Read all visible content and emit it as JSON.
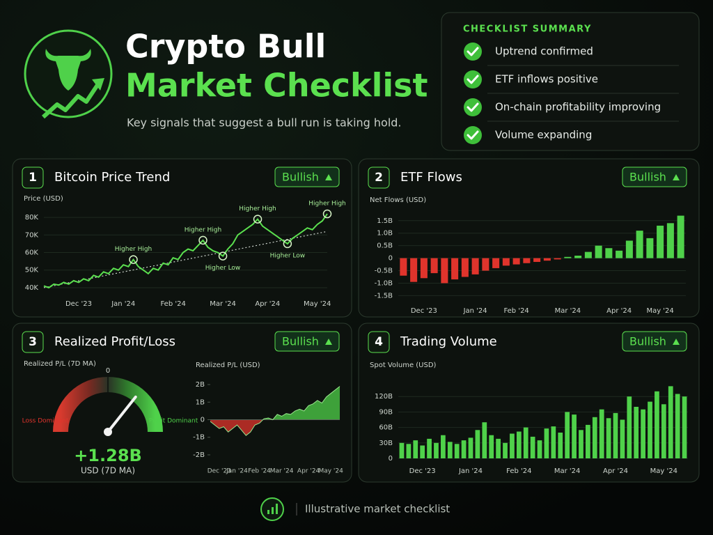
{
  "header": {
    "title_line1": "Crypto Bull",
    "title_line2": "Market Checklist",
    "subtitle": "Key signals that suggest a bull run is taking hold."
  },
  "checklist": {
    "title": "CHECKLIST SUMMARY",
    "items": [
      "Uptrend confirmed",
      "ETF inflows positive",
      "On-chain profitability improving",
      "Volume expanding"
    ]
  },
  "chart_data": [
    {
      "type": "line",
      "number": 1,
      "title": "Bitcoin Price Trend",
      "badge": "Bullish",
      "y_label": "Price (USD)",
      "color": "#5be04f",
      "categories": [
        null,
        null,
        null,
        null,
        null,
        null,
        null,
        "Dec '23",
        null,
        null,
        null,
        null,
        null,
        null,
        null,
        null,
        "Jan '24",
        null,
        null,
        null,
        null,
        null,
        null,
        null,
        null,
        null,
        "Feb '24",
        null,
        null,
        null,
        null,
        null,
        null,
        null,
        null,
        null,
        "Mar '24",
        null,
        null,
        null,
        null,
        null,
        null,
        null,
        null,
        "Apr '24",
        null,
        null,
        null,
        null,
        null,
        null,
        null,
        null,
        null,
        "May '24",
        null,
        null
      ],
      "values": [
        41000,
        40000,
        42000,
        41500,
        43000,
        42000,
        44000,
        43000,
        45000,
        44000,
        47000,
        46000,
        49000,
        48000,
        51000,
        50000,
        53000,
        52000,
        56000,
        52000,
        50000,
        48000,
        51000,
        50000,
        54000,
        53000,
        57000,
        56000,
        60000,
        62000,
        61000,
        64000,
        67000,
        63000,
        61000,
        60000,
        58000,
        62000,
        65000,
        70000,
        72000,
        74000,
        76000,
        79000,
        75000,
        73000,
        71000,
        69000,
        67000,
        65000,
        68000,
        70000,
        72000,
        74000,
        73000,
        76000,
        78000,
        82000
      ],
      "point_labels": [
        null,
        null,
        null,
        null,
        null,
        null,
        null,
        null,
        null,
        null,
        null,
        null,
        null,
        null,
        null,
        null,
        null,
        null,
        "Higher High",
        null,
        null,
        null,
        null,
        null,
        null,
        null,
        null,
        null,
        null,
        null,
        null,
        null,
        "Higher High",
        null,
        null,
        null,
        "Higher Low",
        null,
        null,
        null,
        null,
        null,
        null,
        "Higher High",
        null,
        null,
        null,
        null,
        null,
        "Higher Low",
        null,
        null,
        null,
        null,
        null,
        null,
        null,
        "Higher High"
      ],
      "trend": [
        40000,
        72000
      ],
      "ylim": [
        38000,
        84000
      ],
      "yticks": [
        {
          "value": 40000,
          "label": "40K"
        },
        {
          "value": 50000,
          "label": "50K"
        },
        {
          "value": 60000,
          "label": "60K"
        },
        {
          "value": 70000,
          "label": "70K"
        },
        {
          "value": 80000,
          "label": "80K"
        }
      ],
      "grid": true
    },
    {
      "type": "bar",
      "number": 2,
      "title": "ETF Flows",
      "badge": "Bullish",
      "y_label": "Net Flows (USD)",
      "colors": {
        "positive": "#4fd14a",
        "negative": "#e0342c"
      },
      "categories": [
        null,
        null,
        "Dec '23",
        null,
        null,
        null,
        null,
        "Jan '24",
        null,
        null,
        null,
        "Feb '24",
        null,
        null,
        null,
        null,
        "Mar '24",
        null,
        null,
        null,
        null,
        "Apr '24",
        null,
        null,
        null,
        "May '24",
        null,
        null
      ],
      "values": [
        -700000000,
        -950000000,
        -800000000,
        -600000000,
        -1000000000,
        -850000000,
        -750000000,
        -650000000,
        -500000000,
        -400000000,
        -300000000,
        -250000000,
        -200000000,
        -150000000,
        -100000000,
        -50000000,
        50000000,
        100000000,
        250000000,
        500000000,
        400000000,
        300000000,
        700000000,
        1100000000,
        800000000,
        1300000000,
        1400000000,
        1700000000
      ],
      "ylim": [
        -1600000000,
        1800000000
      ],
      "yticks": [
        {
          "value": -1500000000,
          "label": "-1.5B"
        },
        {
          "value": -1000000000,
          "label": "-1.0B"
        },
        {
          "value": -500000000,
          "label": "-0.5B"
        },
        0,
        {
          "value": 500000000,
          "label": "0.5B"
        },
        {
          "value": 1000000000,
          "label": "1.0B"
        },
        {
          "value": 1500000000,
          "label": "1.5B"
        }
      ],
      "grid": true
    },
    {
      "type": "gauge",
      "number": 3,
      "title": "Realized Profit/Loss",
      "badge": "Bullish",
      "label": "Realized P/L (7D MA)",
      "values": [
        1280000000
      ],
      "value_labels": [
        "+1.28B"
      ],
      "unit": "USD (7D MA)",
      "lim": [
        -3000000000,
        3000000000
      ],
      "ticks": [
        0
      ],
      "left_label": "Loss Dominant",
      "right_label": "Profit Dominant"
    },
    {
      "type": "area",
      "y_label": "Realized P/L (USD)",
      "colors": {
        "positive": "#4fd14a",
        "negative": "#e0342c"
      },
      "categories": [
        null,
        null,
        "Dec '23",
        null,
        null,
        null,
        "Jan '24",
        null,
        null,
        null,
        null,
        "Feb '24",
        null,
        null,
        null,
        null,
        "Mar '24",
        null,
        null,
        null,
        null,
        null,
        "Apr '24",
        null,
        null,
        null,
        null,
        "May '24",
        null,
        null
      ],
      "values": [
        -100000000,
        -300000000,
        -500000000,
        -400000000,
        -700000000,
        -500000000,
        -300000000,
        -600000000,
        -900000000,
        -700000000,
        -300000000,
        -200000000,
        50000000,
        100000000,
        0,
        300000000,
        200000000,
        350000000,
        300000000,
        500000000,
        600000000,
        500000000,
        800000000,
        900000000,
        1100000000,
        950000000,
        1300000000,
        1500000000,
        1700000000,
        1900000000
      ],
      "ylim": [
        -2200000000,
        2200000000
      ],
      "yticks": [
        {
          "value": -2000000000,
          "label": "-2B"
        },
        {
          "value": -1000000000,
          "label": "-1B"
        },
        0,
        {
          "value": 1000000000,
          "label": "1B"
        },
        {
          "value": 2000000000,
          "label": "2B"
        }
      ],
      "grid": false
    },
    {
      "type": "bar",
      "number": 4,
      "title": "Trading Volume",
      "badge": "Bullish",
      "y_label": "Spot Volume (USD)",
      "color": "#4fd14a",
      "categories": [
        null,
        null,
        null,
        "Dec '23",
        null,
        null,
        null,
        null,
        null,
        null,
        "Jan '24",
        null,
        null,
        null,
        null,
        null,
        null,
        "Feb '24",
        null,
        null,
        null,
        null,
        null,
        null,
        "Mar '24",
        null,
        null,
        null,
        null,
        null,
        null,
        "Apr '24",
        null,
        null,
        null,
        null,
        null,
        null,
        "May '24",
        null,
        null,
        null
      ],
      "values": [
        30000000000,
        28000000000,
        35000000000,
        25000000000,
        38000000000,
        30000000000,
        45000000000,
        32000000000,
        28000000000,
        35000000000,
        40000000000,
        55000000000,
        70000000000,
        45000000000,
        38000000000,
        30000000000,
        48000000000,
        52000000000,
        60000000000,
        42000000000,
        35000000000,
        58000000000,
        62000000000,
        50000000000,
        90000000000,
        85000000000,
        55000000000,
        65000000000,
        80000000000,
        95000000000,
        78000000000,
        88000000000,
        75000000000,
        120000000000,
        100000000000,
        95000000000,
        110000000000,
        130000000000,
        105000000000,
        140000000000,
        125000000000,
        120000000000
      ],
      "ylim": [
        0,
        150000000000
      ],
      "yticks": [
        0,
        {
          "value": 30000000000,
          "label": "30B"
        },
        {
          "value": 60000000000,
          "label": "60B"
        },
        {
          "value": 90000000000,
          "label": "90B"
        },
        {
          "value": 120000000000,
          "label": "120B"
        }
      ],
      "grid": true
    }
  ],
  "footer": "Illustrative market checklist"
}
